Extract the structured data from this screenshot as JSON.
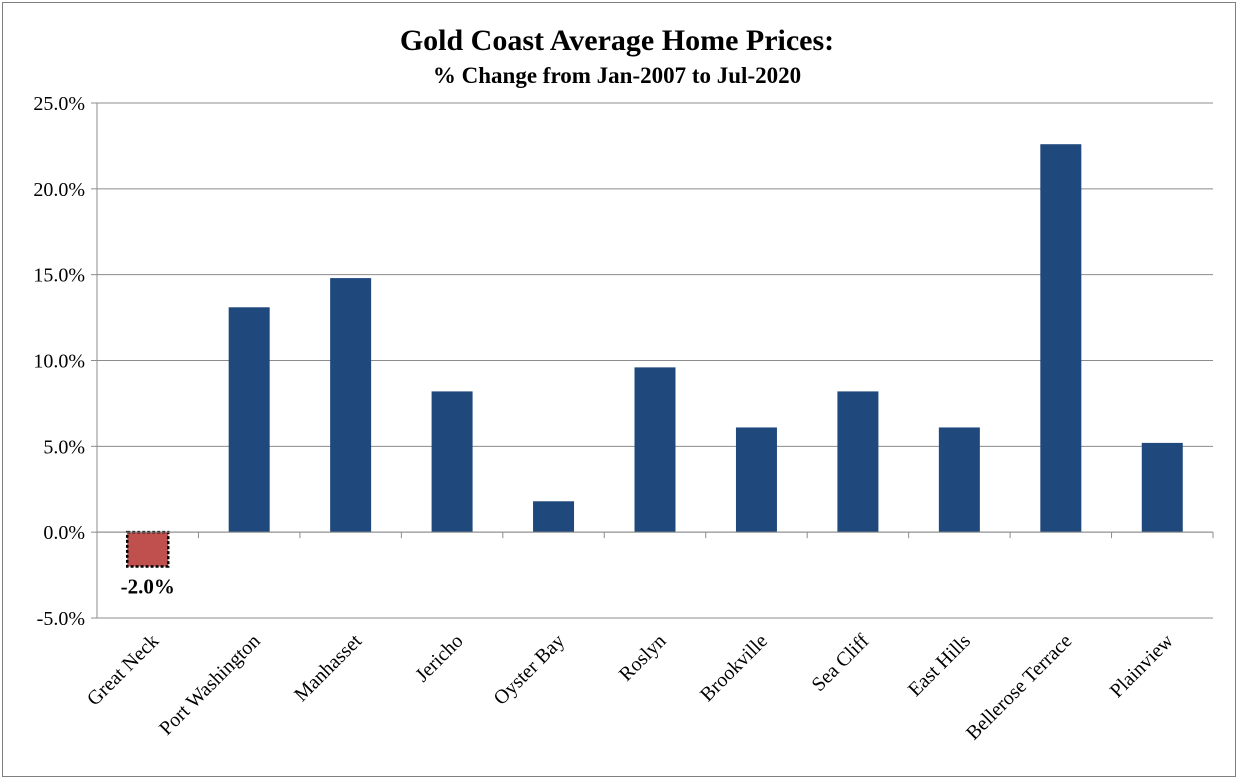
{
  "chart_data": {
    "type": "bar",
    "title": "Gold Coast Average Home Prices:",
    "subtitle": "% Change from Jan-2007 to Jul-2020",
    "categories": [
      "Great Neck",
      "Port Washington",
      "Manhasset",
      "Jericho",
      "Oyster Bay",
      "Roslyn",
      "Brookville",
      "Sea Cliff",
      "East Hills",
      "Bellerose Terrace",
      "Plainview"
    ],
    "values": [
      -2.0,
      13.1,
      14.8,
      8.2,
      1.8,
      9.6,
      6.1,
      8.2,
      6.1,
      22.6,
      5.2
    ],
    "ylim": [
      -5,
      25
    ],
    "yticks": [
      -5,
      0,
      5,
      10,
      15,
      20,
      25
    ],
    "ytick_labels": [
      "-5.0%",
      "0.0%",
      "5.0%",
      "10.0%",
      "15.0%",
      "20.0%",
      "25.0%"
    ],
    "grid": true,
    "colors": {
      "positive": "#1F497D",
      "negative": "#C0504D"
    },
    "data_labels": [
      {
        "index": 0,
        "text": "-2.0%"
      }
    ]
  }
}
